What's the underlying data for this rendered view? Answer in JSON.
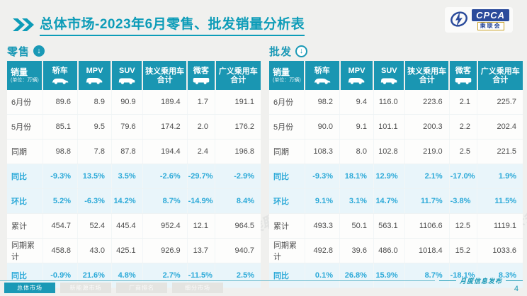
{
  "header": {
    "title": "总体市场-2023年6月零售、批发销量分析表",
    "logo": {
      "cpca": "CPCA",
      "org": "乘联会"
    }
  },
  "watermark_text": "CPCA 乘联会",
  "tables": [
    {
      "section_label": "零售",
      "stat_label": "销量",
      "unit": "(单位：万辆)",
      "columns": [
        {
          "label": "轿车",
          "icon": "car-icon"
        },
        {
          "label": "MPV",
          "icon": "mpv-icon"
        },
        {
          "label": "SUV",
          "icon": "suv-icon"
        },
        {
          "label": "狭义乘用车",
          "label2": "合计"
        },
        {
          "label": "微客",
          "icon": "minibus-icon"
        },
        {
          "label": "广义乘用车",
          "label2": "合计"
        }
      ],
      "rows": [
        {
          "label": "6月份",
          "pct": false,
          "values": [
            "89.6",
            "8.9",
            "90.9",
            "189.4",
            "1.7",
            "191.1"
          ]
        },
        {
          "label": "5月份",
          "pct": false,
          "values": [
            "85.1",
            "9.5",
            "79.6",
            "174.2",
            "2.0",
            "176.2"
          ]
        },
        {
          "label": "同期",
          "pct": false,
          "values": [
            "98.8",
            "7.8",
            "87.8",
            "194.4",
            "2.4",
            "196.8"
          ]
        },
        {
          "label": "同比",
          "pct": true,
          "values": [
            "-9.3%",
            "13.5%",
            "3.5%",
            "-2.6%",
            "-29.7%",
            "-2.9%"
          ]
        },
        {
          "label": "环比",
          "pct": true,
          "values": [
            "5.2%",
            "-6.3%",
            "14.2%",
            "8.7%",
            "-14.9%",
            "8.4%"
          ]
        },
        {
          "label": "累计",
          "pct": false,
          "values": [
            "454.7",
            "52.4",
            "445.4",
            "952.4",
            "12.1",
            "964.5"
          ]
        },
        {
          "label": "同期累计",
          "pct": false,
          "values": [
            "458.8",
            "43.0",
            "425.1",
            "926.9",
            "13.7",
            "940.7"
          ]
        },
        {
          "label": "同比",
          "pct": true,
          "values": [
            "-0.9%",
            "21.6%",
            "4.8%",
            "2.7%",
            "-11.5%",
            "2.5%"
          ]
        }
      ]
    },
    {
      "section_label": "批发",
      "stat_label": "销量",
      "unit": "(单位：万辆)",
      "columns": [
        {
          "label": "轿车",
          "icon": "car-icon"
        },
        {
          "label": "MPV",
          "icon": "mpv-icon"
        },
        {
          "label": "SUV",
          "icon": "suv-icon"
        },
        {
          "label": "狭义乘用车",
          "label2": "合计"
        },
        {
          "label": "微客",
          "icon": "minibus-icon"
        },
        {
          "label": "广义乘用车",
          "label2": "合计"
        }
      ],
      "rows": [
        {
          "label": "6月份",
          "pct": false,
          "values": [
            "98.2",
            "9.4",
            "116.0",
            "223.6",
            "2.1",
            "225.7"
          ]
        },
        {
          "label": "5月份",
          "pct": false,
          "values": [
            "90.0",
            "9.1",
            "101.1",
            "200.3",
            "2.2",
            "202.4"
          ]
        },
        {
          "label": "同期",
          "pct": false,
          "values": [
            "108.3",
            "8.0",
            "102.8",
            "219.0",
            "2.5",
            "221.5"
          ]
        },
        {
          "label": "同比",
          "pct": true,
          "values": [
            "-9.3%",
            "18.1%",
            "12.9%",
            "2.1%",
            "-17.0%",
            "1.9%"
          ]
        },
        {
          "label": "环比",
          "pct": true,
          "values": [
            "9.1%",
            "3.1%",
            "14.7%",
            "11.7%",
            "-3.8%",
            "11.5%"
          ]
        },
        {
          "label": "累计",
          "pct": false,
          "values": [
            "493.3",
            "50.1",
            "563.1",
            "1106.6",
            "12.5",
            "1119.1"
          ]
        },
        {
          "label": "同期累计",
          "pct": false,
          "values": [
            "492.8",
            "39.6",
            "486.0",
            "1018.4",
            "15.2",
            "1033.6"
          ]
        },
        {
          "label": "同比",
          "pct": true,
          "values": [
            "0.1%",
            "26.8%",
            "15.9%",
            "8.7%",
            "-18.1%",
            "8.3%"
          ]
        }
      ]
    }
  ],
  "footer": {
    "tabs": [
      {
        "label": "总体市场"
      },
      {
        "label": "新能源市场"
      },
      {
        "label": "厂商排名"
      },
      {
        "label": "细分市场"
      }
    ],
    "publish_label": "月度信息发布",
    "page_number": "4"
  },
  "colors": {
    "teal": "#1a99b6",
    "cyan": "#2ba9d8",
    "header_bg": "#1a96b2",
    "pct_row_bg": "#e9f5fa"
  }
}
